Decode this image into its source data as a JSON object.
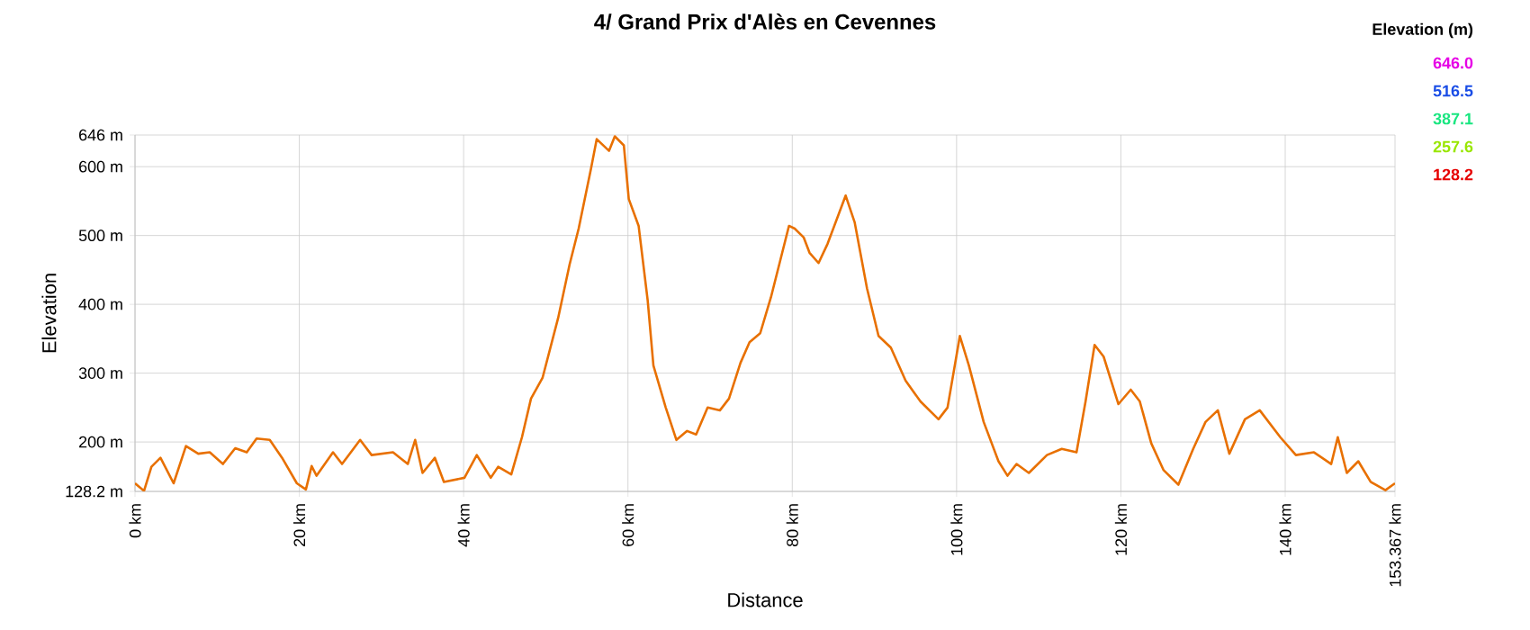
{
  "chart_data": {
    "type": "line",
    "title": "4/ Grand Prix d'Alès en Cevennes",
    "xlabel": "Distance",
    "ylabel": "Elevation",
    "annotations": [
      "Elevation (m)",
      "646.0",
      "516.5",
      "387.1",
      "257.6",
      "128.2"
    ],
    "xlim": [
      0,
      153.367
    ],
    "ylim": [
      128.2,
      646
    ],
    "xticks": [
      {
        "value": 0,
        "label": "0 km"
      },
      {
        "value": 20,
        "label": "20 km"
      },
      {
        "value": 40,
        "label": "40 km"
      },
      {
        "value": 60,
        "label": "60 km"
      },
      {
        "value": 80,
        "label": "80 km"
      },
      {
        "value": 100,
        "label": "100 km"
      },
      {
        "value": 120,
        "label": "120 km"
      },
      {
        "value": 140,
        "label": "140 km"
      },
      {
        "value": 153.367,
        "label": "153.367 km"
      }
    ],
    "yticks": [
      {
        "value": 128.2,
        "label": "128.2 m"
      },
      {
        "value": 200,
        "label": "200 m"
      },
      {
        "value": 300,
        "label": "300 m"
      },
      {
        "value": 400,
        "label": "400 m"
      },
      {
        "value": 500,
        "label": "500 m"
      },
      {
        "value": 600,
        "label": "600 m"
      },
      {
        "value": 646,
        "label": "646 m"
      }
    ],
    "grid": true,
    "marker": "none",
    "line_style": "solid",
    "series": [
      {
        "color": "#e87000",
        "x": [
          0,
          1.1,
          2,
          3.1,
          4.7,
          6.2,
          7.7,
          9.1,
          10.7,
          12.2,
          13.6,
          14.8,
          16.4,
          17.9,
          19.7,
          20.8,
          21.5,
          22.1,
          24.1,
          25.2,
          27.4,
          28.8,
          31.4,
          33.2,
          34.1,
          35,
          36.5,
          37.6,
          40.1,
          41.6,
          43.3,
          44.2,
          45.8,
          47.1,
          48.2,
          49.6,
          51.5,
          52.9,
          54,
          55.5,
          56.2,
          57.7,
          58.4,
          59.5,
          60.1,
          61.3,
          62.4,
          63.1,
          64.6,
          65.9,
          67.2,
          68.3,
          69.7,
          71.2,
          72.3,
          73.7,
          74.8,
          76.1,
          77.4,
          78.5,
          79.6,
          80.3,
          81.4,
          82.1,
          83.2,
          84.3,
          86.5,
          87.6,
          89.1,
          90.5,
          92,
          93.8,
          95.6,
          97.8,
          98.9,
          100.4,
          101.5,
          103.3,
          105.1,
          106.2,
          107.3,
          108.8,
          111,
          112.8,
          114.6,
          115.7,
          116.8,
          117.9,
          119.7,
          121.2,
          122.3,
          123.7,
          125.2,
          127,
          128.8,
          130.3,
          131.8,
          133.2,
          135.1,
          136.9,
          139.4,
          141.3,
          143.5,
          145.6,
          146.4,
          147.5,
          148.9,
          150.4,
          152.2,
          153.367
        ],
        "values": [
          140,
          129,
          164,
          177,
          140,
          194,
          183,
          185,
          168,
          191,
          185,
          205,
          203,
          177,
          140,
          131,
          165,
          151,
          185,
          168,
          203,
          181,
          185,
          168,
          203,
          155,
          177,
          142,
          148,
          181,
          148,
          164,
          153,
          207,
          263,
          293,
          380,
          458,
          510,
          597,
          640,
          623,
          644,
          631,
          553,
          514,
          406,
          311,
          250,
          203,
          216,
          211,
          250,
          246,
          263,
          315,
          345,
          358,
          410,
          462,
          514,
          510,
          497,
          475,
          460,
          488,
          558,
          519,
          423,
          354,
          337,
          289,
          259,
          233,
          250,
          354,
          311,
          229,
          172,
          151,
          168,
          155,
          181,
          190,
          185,
          259,
          341,
          324,
          255,
          276,
          259,
          198,
          159,
          138,
          190,
          229,
          246,
          183,
          233,
          246,
          207,
          181,
          185,
          168,
          207,
          155,
          172,
          142,
          130,
          140
        ]
      }
    ]
  }
}
